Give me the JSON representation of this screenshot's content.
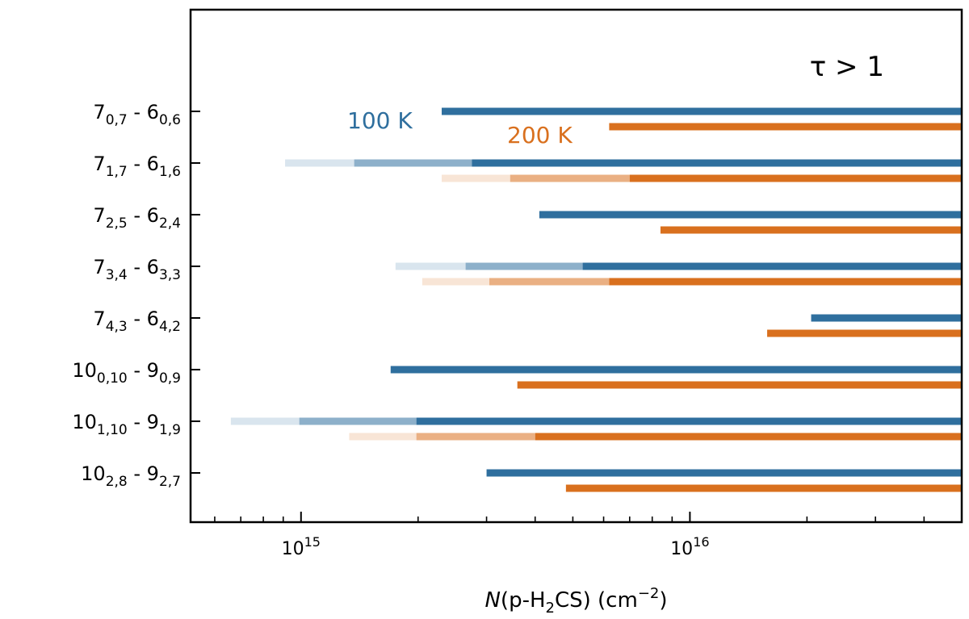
{
  "chart_data": {
    "type": "bar",
    "orientation": "horizontal",
    "xscale": "log",
    "xlim": [
      520000000000000.0,
      5e+16
    ],
    "categories": [
      {
        "N": "7",
        "Nsub": "0,7",
        "L": "6",
        "Lsub": "0,6"
      },
      {
        "N": "7",
        "Nsub": "1,7",
        "L": "6",
        "Lsub": "1,6"
      },
      {
        "N": "7",
        "Nsub": "2,5",
        "L": "6",
        "Lsub": "2,4"
      },
      {
        "N": "7",
        "Nsub": "3,4",
        "L": "6",
        "Lsub": "3,3"
      },
      {
        "N": "7",
        "Nsub": "4,3",
        "L": "6",
        "Lsub": "4,2"
      },
      {
        "N": "10",
        "Nsub": "0,10",
        "L": "9",
        "Lsub": "0,9"
      },
      {
        "N": "10",
        "Nsub": "1,10",
        "L": "9",
        "Lsub": "1,9"
      },
      {
        "N": "10",
        "Nsub": "2,8",
        "L": "9",
        "Lsub": "2,7"
      }
    ],
    "category_separator": " - ",
    "series": [
      {
        "name": "100 K",
        "color": "#2f6f9e",
        "values": [
          2300000000000000.0,
          2750000000000000.0,
          4100000000000000.0,
          5300000000000000.0,
          2.05e+16,
          1700000000000000.0,
          1980000000000000.0,
          3000000000000000.0
        ],
        "faint_start": [
          null,
          910000000000000.0,
          null,
          1750000000000000.0,
          null,
          null,
          660000000000000.0,
          null
        ],
        "medium_start": [
          null,
          1370000000000000.0,
          null,
          2650000000000000.0,
          null,
          null,
          990000000000000.0,
          null
        ]
      },
      {
        "name": "200 K",
        "color": "#d9701e",
        "values": [
          6200000000000000.0,
          7000000000000000.0,
          8400000000000000.0,
          6200000000000000.0,
          1.58e+16,
          3600000000000000.0,
          4000000000000000.0,
          4800000000000000.0
        ],
        "faint_start": [
          null,
          2300000000000000.0,
          null,
          2050000000000000.0,
          null,
          null,
          1330000000000000.0,
          null
        ],
        "medium_start": [
          null,
          3450000000000000.0,
          null,
          3050000000000000.0,
          null,
          null,
          1980000000000000.0,
          null
        ]
      }
    ],
    "xticks": [
      {
        "value": 1000000000000000.0,
        "base": "10",
        "exp": "15"
      },
      {
        "value": 1e+16,
        "base": "10",
        "exp": "16"
      }
    ],
    "xlabel": {
      "prefix": "N",
      "mid": "(p-H",
      "sub": "2",
      "suffix": "CS) (cm",
      "sup": "−2",
      "end": ")"
    },
    "annotation": "τ > 1",
    "legend_position": "in-plot labels near top"
  }
}
